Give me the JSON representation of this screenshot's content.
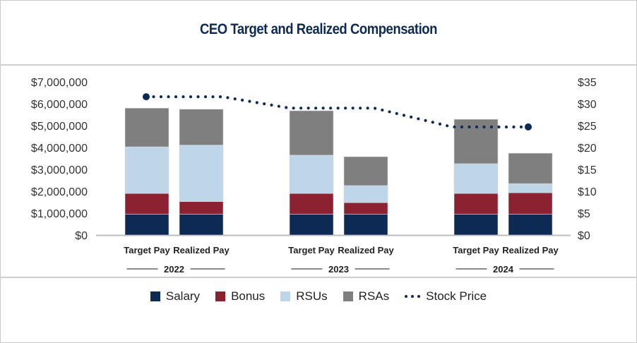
{
  "chart_data": {
    "type": "bar",
    "stacked": true,
    "title": "CEO Target and Realized Compensation",
    "groups": [
      "2022",
      "2023",
      "2024"
    ],
    "categories": [
      "Target Pay",
      "Realized Pay",
      "Target Pay",
      "Realized Pay",
      "Target Pay",
      "Realized Pay"
    ],
    "series": [
      {
        "name": "Salary",
        "color": "#0d2a55",
        "values": [
          950000,
          950000,
          950000,
          950000,
          950000,
          950000
        ]
      },
      {
        "name": "Bonus",
        "color": "#8b2232",
        "values": [
          950000,
          580000,
          950000,
          530000,
          950000,
          980000
        ]
      },
      {
        "name": "RSUs",
        "color": "#bfd5e8",
        "values": [
          2130000,
          2580000,
          1750000,
          780000,
          1360000,
          420000
        ]
      },
      {
        "name": "RSAs",
        "color": "#7f7f7f",
        "values": [
          1770000,
          1640000,
          2030000,
          1320000,
          2030000,
          1390000
        ]
      }
    ],
    "line_series": {
      "name": "Stock Price",
      "color": "#0d2a55",
      "axis": "right",
      "values": [
        31.6,
        31.6,
        29.0,
        29.0,
        24.7,
        24.7
      ]
    },
    "y_left": {
      "ylim": [
        0,
        7000000
      ],
      "ticks": [
        "$0",
        "$1,000,000",
        "$2,000,000",
        "$3,000,000",
        "$4,000,000",
        "$5,000,000",
        "$6,000,000",
        "$7,000,000"
      ]
    },
    "y_right": {
      "ylim": [
        0,
        35
      ],
      "ticks": [
        "$0",
        "$5",
        "$10",
        "$15",
        "$20",
        "$25",
        "$30",
        "$35"
      ]
    },
    "legend": [
      "Salary",
      "Bonus",
      "RSUs",
      "RSAs",
      "Stock Price"
    ],
    "legend_position": "bottom",
    "grid": false
  }
}
